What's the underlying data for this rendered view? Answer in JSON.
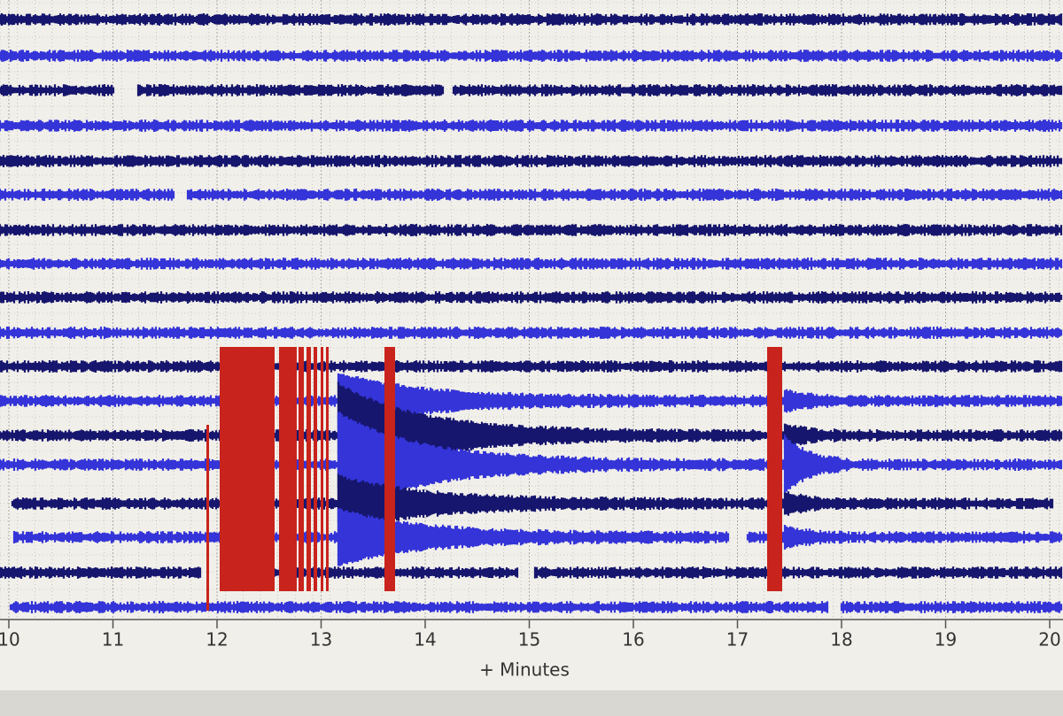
{
  "chart_data": {
    "type": "seismogram",
    "xlabel": "+ Minutes",
    "xlim": [
      10,
      20
    ],
    "xticks": [
      10,
      11,
      12,
      13,
      14,
      15,
      16,
      17,
      18,
      19,
      20
    ],
    "grid": true
  }
}
